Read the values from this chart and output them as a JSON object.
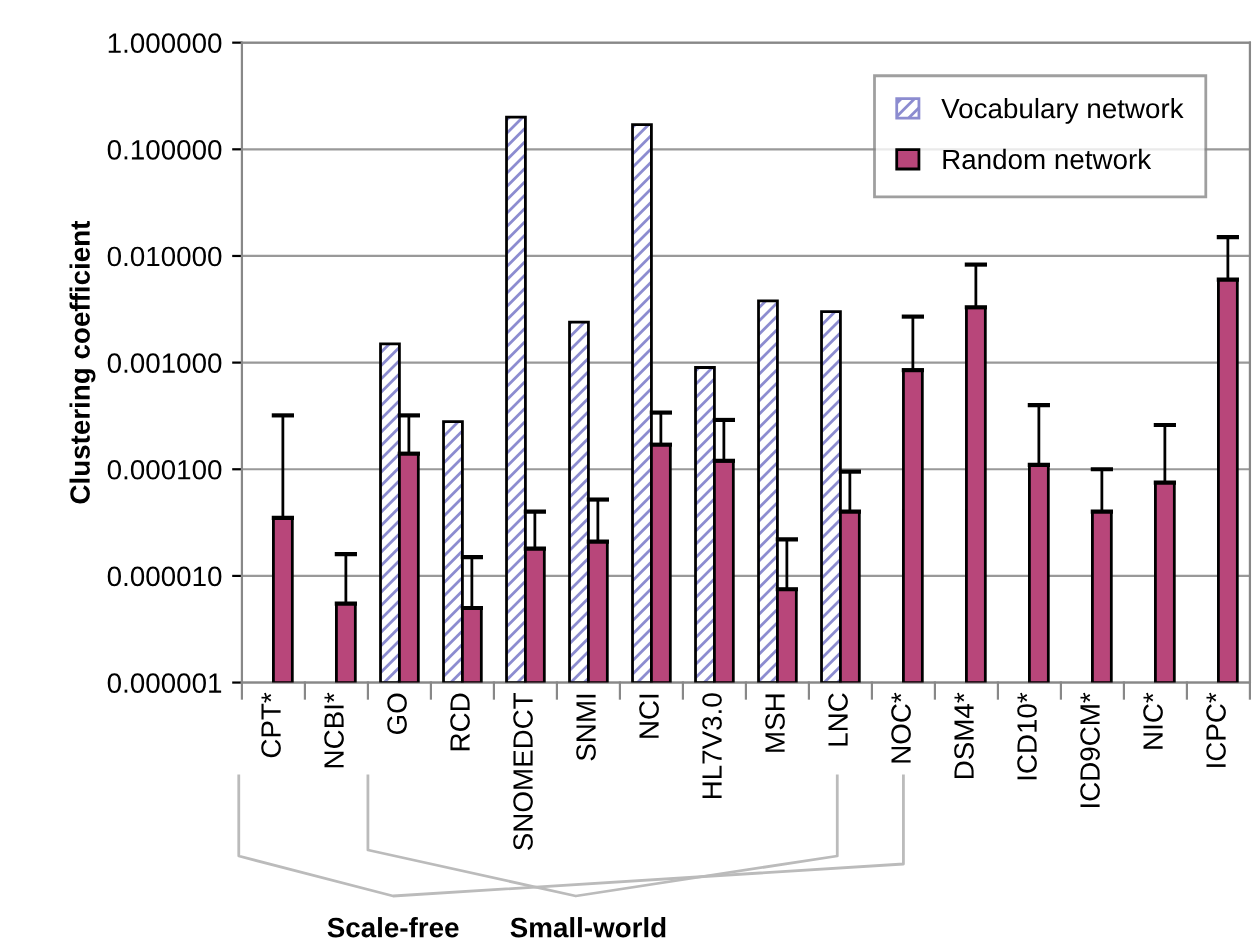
{
  "chart_data": {
    "type": "bar",
    "ylabel": "Clustering coefficient",
    "categories": [
      "CPT*",
      "NCBI*",
      "GO",
      "RCD",
      "SNOMEDCT",
      "SNMI",
      "NCI",
      "HL7V3.0",
      "MSH",
      "LNC",
      "NOC*",
      "DSM4*",
      "ICD10*",
      "ICD9CM*",
      "NIC*",
      "ICPC*"
    ],
    "series": [
      {
        "name": "Vocabulary network",
        "color": "#8c8cd0",
        "values": [
          null,
          null,
          0.0015,
          0.00028,
          0.2,
          0.0024,
          0.17,
          0.0009,
          0.0038,
          0.003,
          null,
          null,
          null,
          null,
          null,
          null
        ]
      },
      {
        "name": "Random network",
        "color": "#b8467a",
        "values": [
          3.5e-05,
          5.5e-06,
          0.00014,
          5e-06,
          1.8e-05,
          2.1e-05,
          0.00017,
          0.00012,
          7.5e-06,
          4e-05,
          0.00085,
          0.0033,
          0.00011,
          4e-05,
          7.5e-05,
          0.006
        ],
        "errors": [
          [
            3.5e-05,
            0.00032
          ],
          [
            5.5e-06,
            1.6e-05
          ],
          [
            0.00014,
            0.00032
          ],
          [
            5e-06,
            1.5e-05
          ],
          [
            1.8e-05,
            4e-05
          ],
          [
            2.1e-05,
            5.2e-05
          ],
          [
            0.00017,
            0.00034
          ],
          [
            0.00012,
            0.00029
          ],
          [
            7.5e-06,
            2.2e-05
          ],
          [
            4e-05,
            9.5e-05
          ],
          [
            0.00085,
            0.0027
          ],
          [
            0.0033,
            0.0083
          ],
          [
            0.00011,
            0.0004
          ],
          [
            4e-05,
            0.0001
          ],
          [
            7.5e-05,
            0.00026
          ],
          [
            0.006,
            0.015
          ]
        ]
      }
    ],
    "log": true,
    "ylim": [
      1e-06,
      1
    ],
    "yticks": [
      {
        "value": 1e-06,
        "label": "0.000001"
      },
      {
        "value": 1e-05,
        "label": "0.000010"
      },
      {
        "value": 0.0001,
        "label": "0.000100"
      },
      {
        "value": 0.001,
        "label": "0.001000"
      },
      {
        "value": 0.01,
        "label": "0.010000"
      },
      {
        "value": 0.1,
        "label": "0.100000"
      },
      {
        "value": 1,
        "label": "1.000000"
      }
    ],
    "grid": "y",
    "legend": "top right",
    "annotations": [
      "Scale-free",
      "Small-world"
    ]
  }
}
